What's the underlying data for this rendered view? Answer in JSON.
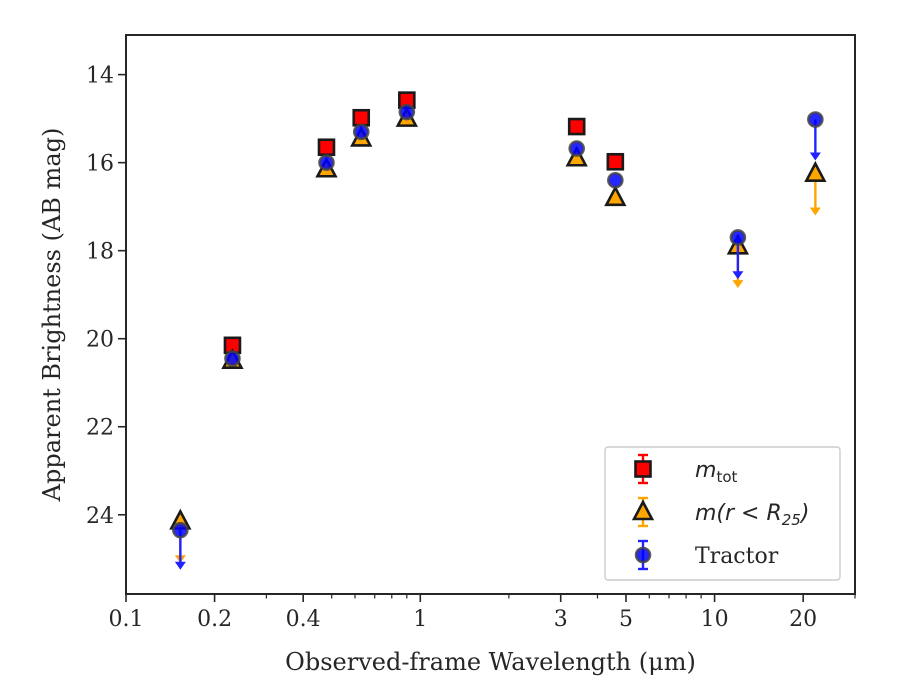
{
  "chart_data": {
    "type": "scatter",
    "xlabel": "Observed-frame Wavelength (μm)",
    "ylabel": "Apparent Brightness (AB mag)",
    "x_scale": "log",
    "xlim": [
      0.1,
      30
    ],
    "ylim": [
      25.8,
      13.1
    ],
    "y_inverted": true,
    "x_ticks": [
      0.1,
      0.2,
      0.4,
      1,
      3,
      5,
      10,
      20
    ],
    "x_tick_labels": [
      "0.1",
      "0.2",
      "0.4",
      "1",
      "3",
      "5",
      "10",
      "20"
    ],
    "y_ticks": [
      14,
      16,
      18,
      20,
      22,
      24
    ],
    "y_tick_labels": [
      "14",
      "16",
      "18",
      "20",
      "22",
      "24"
    ],
    "legend_position": "lower right",
    "series": [
      {
        "name": "m_tot",
        "name_main": "m",
        "name_sub": "tot",
        "marker": "square",
        "face_color": "#ff0000",
        "edge_color": "#1a1a1a",
        "error_color": "#ff0000",
        "points": [
          {
            "x": 0.23,
            "y": 20.15
          },
          {
            "x": 0.48,
            "y": 15.65
          },
          {
            "x": 0.63,
            "y": 14.98
          },
          {
            "x": 0.9,
            "y": 14.58
          },
          {
            "x": 3.4,
            "y": 15.18
          },
          {
            "x": 4.6,
            "y": 15.98
          }
        ]
      },
      {
        "name": "m(r < R_25)",
        "name_main": "m(r < R",
        "name_sub": "25",
        "name_tail": ")",
        "marker": "triangle",
        "face_color": "#ffa500",
        "edge_color": "#1a1a1a",
        "error_color": "#ffa500",
        "points": [
          {
            "x": 0.153,
            "y": 24.15,
            "upper_limit": true,
            "limit_to": 25.1
          },
          {
            "x": 0.23,
            "y": 20.5
          },
          {
            "x": 0.48,
            "y": 16.15
          },
          {
            "x": 0.63,
            "y": 15.45
          },
          {
            "x": 0.9,
            "y": 15.0
          },
          {
            "x": 3.4,
            "y": 15.9
          },
          {
            "x": 4.6,
            "y": 16.8
          },
          {
            "x": 12.0,
            "y": 17.9,
            "upper_limit": true,
            "limit_to": 18.85
          },
          {
            "x": 22.0,
            "y": 16.25,
            "upper_limit": true,
            "limit_to": 17.2
          }
        ]
      },
      {
        "name": "Tractor",
        "name_main": "Tractor",
        "marker": "circle",
        "face_color": "#0000ff",
        "edge_color": "#444444",
        "error_color": "#2222ff",
        "points": [
          {
            "x": 0.153,
            "y": 24.35,
            "upper_limit": true,
            "limit_to": 25.25
          },
          {
            "x": 0.23,
            "y": 20.45
          },
          {
            "x": 0.48,
            "y": 16.0
          },
          {
            "x": 0.63,
            "y": 15.3
          },
          {
            "x": 0.9,
            "y": 14.85
          },
          {
            "x": 3.4,
            "y": 15.68
          },
          {
            "x": 4.6,
            "y": 16.4
          },
          {
            "x": 12.0,
            "y": 17.7,
            "upper_limit": true,
            "limit_to": 18.65
          },
          {
            "x": 22.0,
            "y": 15.02,
            "upper_limit": true,
            "limit_to": 15.95
          }
        ]
      }
    ]
  }
}
